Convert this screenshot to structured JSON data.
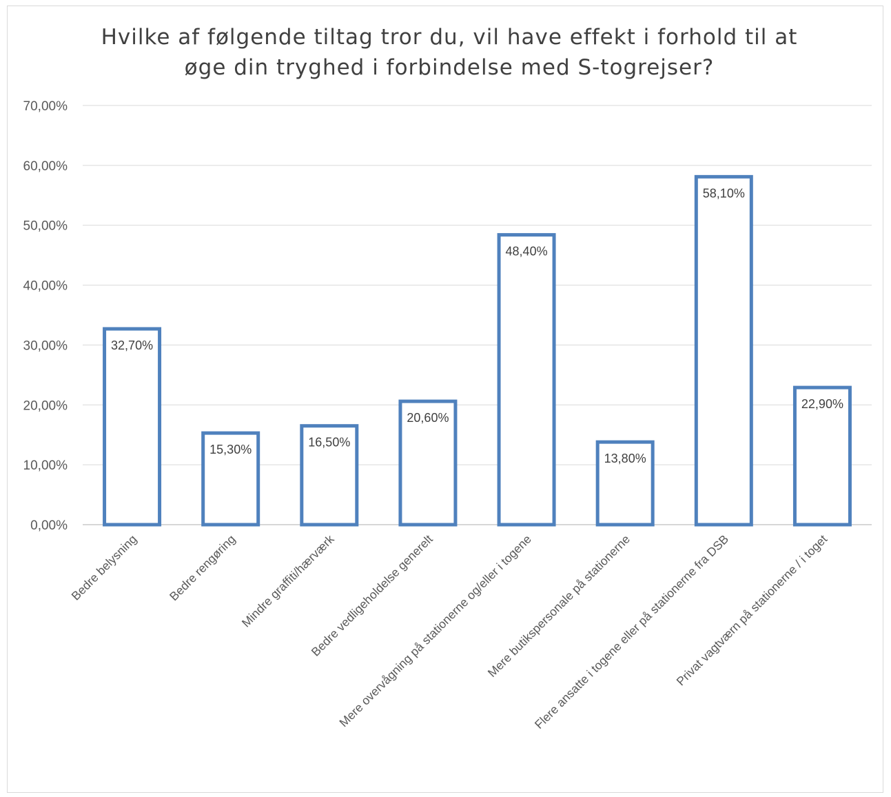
{
  "chart_data": {
    "type": "bar",
    "title_lines": [
      "Hvilke af følgende tiltag tror du, vil have effekt i forhold til at",
      "øge din tryghed i forbindelse med S-togrejser?"
    ],
    "categories": [
      "Bedre belysning",
      "Bedre rengøring",
      "Mindre graffiti/hærværk",
      "Bedre vedligeholdelse generelt",
      "Mere overvågning på stationerne og/eller i togene",
      "Mere butikspersonale på stationerne",
      "Flere ansatte i togene eller på stationerne fra DSB",
      "Privat vagtværn på stationerne / i toget"
    ],
    "values": [
      32.7,
      15.3,
      16.5,
      20.6,
      48.4,
      13.8,
      58.1,
      22.9
    ],
    "data_labels": [
      "32,70%",
      "15,30%",
      "16,50%",
      "20,60%",
      "48,40%",
      "13,80%",
      "58,10%",
      "22,90%"
    ],
    "ylim": [
      0,
      70
    ],
    "yticks": [
      0,
      10,
      20,
      30,
      40,
      50,
      60,
      70
    ],
    "ytick_labels": [
      "0,00%",
      "10,00%",
      "20,00%",
      "30,00%",
      "40,00%",
      "50,00%",
      "60,00%",
      "70,00%"
    ],
    "grid": true,
    "legend": "none",
    "bar_style": "outline",
    "colors": {
      "bar_outline": "#4f81bd",
      "bar_fill": "#ffffff",
      "grid": "#d9d9d9",
      "text": "#595959"
    }
  }
}
